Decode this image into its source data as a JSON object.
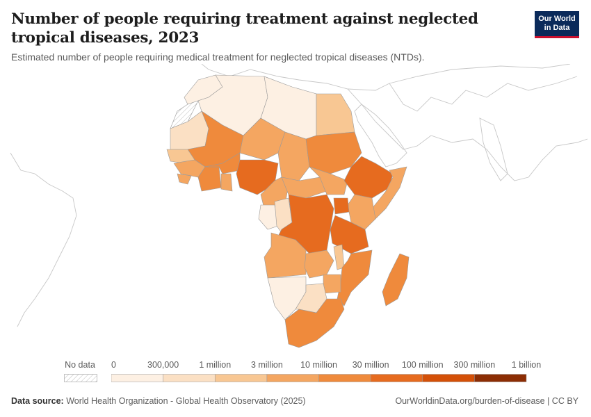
{
  "header": {
    "title": "Number of people requiring treatment against neglected tropical diseases, 2023",
    "subtitle": "Estimated number of people requiring medical treatment for neglected tropical diseases (NTDs).",
    "logo_line1": "Our World",
    "logo_line2": "in Data"
  },
  "legend": {
    "no_data_label": "No data",
    "bins": [
      "0",
      "300,000",
      "1 million",
      "3 million",
      "10 million",
      "30 million",
      "100 million",
      "300 million",
      "1 billion"
    ],
    "colors": [
      "#fdf0e3",
      "#fbe0c4",
      "#f8c793",
      "#f4a661",
      "#ef8a3c",
      "#e66b1f",
      "#d45008",
      "#8c2d04"
    ]
  },
  "footer": {
    "source_label": "Data source:",
    "source_text": "World Health Organization - Global Health Observatory (2025)",
    "url": "OurWorldinData.org/burden-of-disease",
    "license": "CC BY"
  }
}
